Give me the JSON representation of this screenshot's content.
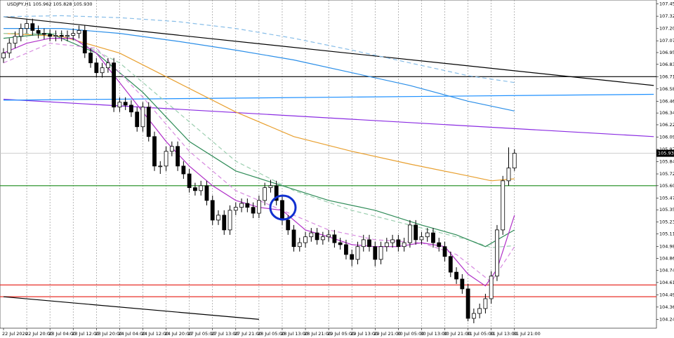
{
  "chart_data": {
    "type": "candlestick",
    "title": "USDJPY,H1  105.962 105.828 105.930",
    "categories": [
      "22 Jul 2020",
      null,
      null,
      null,
      "22 Jul 20:00",
      null,
      null,
      null,
      "23 Jul 04:00",
      null,
      null,
      null,
      "23 Jul 12:00",
      null,
      null,
      null,
      "23 Jul 20:00",
      null,
      null,
      null,
      "24 Jul 04:00",
      null,
      null,
      null,
      "24 Jul 12:00",
      null,
      null,
      null,
      "24 Jul 20:00",
      null,
      null,
      null,
      "27 Jul 05:00",
      null,
      null,
      null,
      "27 Jul 13:00",
      null,
      null,
      null,
      "27 Jul 21:00",
      null,
      null,
      null,
      "28 Jul 05:00",
      null,
      null,
      null,
      "28 Jul 13:00",
      null,
      null,
      null,
      "28 Jul 21:00",
      null,
      null,
      null,
      "29 Jul 05:00",
      null,
      null,
      null,
      "29 Jul 13:00",
      null,
      null,
      null,
      "29 Jul 21:00",
      null,
      null,
      null,
      "30 Jul 05:00",
      null,
      null,
      null,
      "30 Jul 13:00",
      null,
      null,
      null,
      "30 Jul 21:00",
      null,
      null,
      null,
      "31 Jul 05:00",
      null,
      null,
      null,
      "31 Jul 13:00",
      null,
      null,
      null,
      "31 Jul 21:00"
    ],
    "open": [
      106.9,
      106.95,
      107.05,
      107.12,
      107.2,
      107.25,
      107.18,
      107.15,
      107.14,
      107.12,
      107.13,
      107.12,
      107.13,
      107.15,
      107.18,
      106.95,
      106.85,
      106.75,
      106.8,
      106.85,
      106.4,
      106.45,
      106.42,
      106.35,
      106.2,
      106.4,
      106.1,
      105.8,
      105.8,
      105.95,
      106.0,
      105.8,
      105.72,
      105.58,
      105.55,
      105.6,
      105.45,
      105.25,
      105.3,
      105.15,
      105.35,
      105.38,
      105.42,
      105.38,
      105.32,
      105.45,
      105.58,
      105.6,
      105.45,
      105.25,
      105.15,
      104.98,
      105.02,
      105.08,
      105.12,
      105.05,
      105.08,
      105.1,
      105.02,
      105.0,
      104.9,
      104.85,
      104.98,
      105.05,
      104.98,
      104.85,
      104.98,
      105.02,
      105.05,
      104.98,
      105.02,
      105.2,
      105.05,
      105.08,
      105.12,
      105.02,
      104.98,
      104.88,
      104.72,
      104.65,
      104.55,
      104.25,
      104.3,
      104.35,
      104.45,
      104.68,
      105.15,
      105.65,
      105.78
    ],
    "high": [
      107.0,
      107.1,
      107.17,
      107.25,
      107.3,
      107.3,
      107.23,
      107.2,
      107.19,
      107.18,
      107.18,
      107.18,
      107.2,
      107.23,
      107.23,
      107.0,
      106.9,
      106.85,
      106.9,
      106.9,
      106.5,
      106.5,
      106.47,
      106.4,
      106.45,
      106.45,
      106.15,
      105.85,
      106.0,
      106.05,
      106.05,
      105.85,
      105.77,
      105.63,
      105.65,
      105.65,
      105.5,
      105.35,
      105.35,
      105.4,
      105.43,
      105.47,
      105.47,
      105.43,
      105.5,
      105.63,
      105.66,
      105.65,
      105.5,
      105.3,
      105.2,
      105.07,
      105.13,
      105.17,
      105.17,
      105.13,
      105.15,
      105.15,
      105.07,
      105.05,
      104.95,
      105.03,
      105.1,
      105.1,
      105.03,
      105.03,
      105.07,
      105.1,
      105.1,
      105.07,
      105.25,
      105.25,
      105.13,
      105.17,
      105.17,
      105.07,
      105.03,
      104.93,
      104.77,
      104.7,
      104.6,
      104.35,
      104.4,
      104.5,
      104.73,
      105.2,
      105.7,
      105.99,
      105.97
    ],
    "low": [
      106.85,
      106.9,
      107.0,
      107.07,
      107.15,
      107.13,
      107.1,
      107.09,
      107.07,
      107.07,
      107.07,
      107.07,
      107.08,
      107.1,
      106.9,
      106.8,
      106.7,
      106.7,
      106.75,
      106.35,
      106.35,
      106.37,
      106.3,
      106.15,
      106.15,
      106.05,
      105.75,
      105.72,
      105.75,
      105.9,
      105.75,
      105.67,
      105.53,
      105.5,
      105.5,
      105.4,
      105.2,
      105.2,
      105.1,
      105.1,
      105.3,
      105.33,
      105.33,
      105.27,
      105.27,
      105.4,
      105.53,
      105.4,
      105.2,
      105.1,
      104.93,
      104.93,
      104.97,
      105.03,
      105.0,
      105.0,
      105.03,
      104.97,
      104.95,
      104.85,
      104.78,
      104.8,
      104.93,
      104.93,
      104.78,
      104.8,
      104.93,
      104.97,
      104.93,
      104.93,
      104.97,
      105.0,
      105.0,
      105.03,
      104.97,
      104.93,
      104.83,
      104.67,
      104.6,
      104.5,
      104.22,
      104.2,
      104.25,
      104.3,
      104.4,
      104.63,
      105.1,
      105.6,
      105.75
    ],
    "close": [
      106.95,
      107.05,
      107.12,
      107.2,
      107.25,
      107.18,
      107.15,
      107.14,
      107.12,
      107.13,
      107.12,
      107.13,
      107.15,
      107.18,
      106.95,
      106.85,
      106.75,
      106.8,
      106.85,
      106.4,
      106.45,
      106.42,
      106.35,
      106.2,
      106.4,
      106.1,
      105.8,
      105.8,
      105.95,
      106.0,
      105.8,
      105.72,
      105.58,
      105.55,
      105.6,
      105.45,
      105.25,
      105.3,
      105.15,
      105.35,
      105.38,
      105.42,
      105.38,
      105.32,
      105.45,
      105.58,
      105.6,
      105.45,
      105.25,
      105.15,
      104.98,
      105.02,
      105.08,
      105.12,
      105.05,
      105.08,
      105.1,
      105.02,
      105.0,
      104.9,
      104.85,
      104.98,
      105.05,
      104.98,
      104.85,
      104.98,
      105.02,
      105.05,
      104.98,
      105.02,
      105.2,
      105.05,
      105.08,
      105.12,
      105.02,
      104.98,
      104.88,
      104.72,
      104.65,
      104.55,
      104.25,
      104.3,
      104.35,
      104.45,
      104.68,
      105.15,
      105.65,
      105.78,
      105.93
    ],
    "last_price": {
      "value": 105.93,
      "label": "105.930"
    },
    "ylim": [
      104.15,
      107.49
    ],
    "yticks": [
      {
        "value": 107.45,
        "label": "107.450"
      },
      {
        "value": 107.325,
        "label": "107.325"
      },
      {
        "value": 107.2,
        "label": "107.200"
      },
      {
        "value": 107.075,
        "label": "107.075"
      },
      {
        "value": 106.955,
        "label": "106.955"
      },
      {
        "value": 106.835,
        "label": "106.835"
      },
      {
        "value": 106.71,
        "label": "106.710"
      },
      {
        "value": 106.585,
        "label": "106.585"
      },
      {
        "value": 106.46,
        "label": "106.460"
      },
      {
        "value": 106.34,
        "label": "106.340"
      },
      {
        "value": 106.22,
        "label": "106.220"
      },
      {
        "value": 106.095,
        "label": "106.095"
      },
      {
        "value": 105.97,
        "label": "105.970"
      },
      {
        "value": 105.845,
        "label": "105.845"
      },
      {
        "value": 105.72,
        "label": "105.720"
      },
      {
        "value": 105.6,
        "label": "105.600"
      },
      {
        "value": 105.475,
        "label": "105.475"
      },
      {
        "value": 105.355,
        "label": "105.355"
      },
      {
        "value": 105.23,
        "label": "105.230"
      },
      {
        "value": 105.11,
        "label": "105.110"
      },
      {
        "value": 104.98,
        "label": "104.980"
      },
      {
        "value": 104.86,
        "label": "104.860"
      },
      {
        "value": 104.74,
        "label": "104.740"
      },
      {
        "value": 104.615,
        "label": "104.615"
      },
      {
        "value": 104.49,
        "label": "104.490"
      },
      {
        "value": 104.365,
        "label": "104.365"
      },
      {
        "value": 104.24,
        "label": "104.240"
      }
    ],
    "levels": [
      {
        "value": 106.71,
        "color": "#000000"
      },
      {
        "value": 105.6,
        "color": "#1a8a1a"
      },
      {
        "value": 104.59,
        "color": "#e8302a"
      },
      {
        "value": 104.47,
        "color": "#e8302a"
      }
    ],
    "lines": [
      {
        "color": "#000000",
        "dash": false,
        "x": [
          0,
          112
        ],
        "values": [
          107.32,
          106.62
        ]
      },
      {
        "color": "#000000",
        "dash": false,
        "x": [
          0,
          44
        ],
        "values": [
          104.47,
          104.24
        ]
      },
      {
        "color": "#8a2be2",
        "dash": false,
        "x": [
          0,
          112
        ],
        "values": [
          106.48,
          106.1
        ]
      },
      {
        "color": "#1e90ff",
        "dash": false,
        "x": [
          0,
          112
        ],
        "values": [
          106.47,
          106.53
        ]
      },
      {
        "color": "#87bde8",
        "dash": true,
        "x": [
          0,
          10,
          20,
          30,
          40,
          50,
          60,
          70,
          80,
          88
        ],
        "values": [
          107.32,
          107.33,
          107.31,
          107.27,
          107.2,
          107.1,
          106.98,
          106.85,
          106.72,
          106.65
        ]
      },
      {
        "color": "#2a8ee8",
        "dash": false,
        "x": [
          0,
          10,
          20,
          30,
          40,
          50,
          60,
          70,
          80,
          88
        ],
        "values": [
          107.2,
          107.2,
          107.15,
          107.07,
          106.98,
          106.88,
          106.75,
          106.62,
          106.46,
          106.36
        ]
      },
      {
        "color": "#e8a030",
        "dash": false,
        "x": [
          0,
          10,
          20,
          30,
          40,
          50,
          60,
          70,
          80,
          84,
          88
        ],
        "values": [
          107.15,
          107.12,
          106.95,
          106.65,
          106.35,
          106.1,
          105.95,
          105.82,
          105.7,
          105.65,
          105.67
        ]
      },
      {
        "color": "#9ccfb0",
        "dash": true,
        "x": [
          0,
          10,
          20,
          30,
          40,
          50,
          60,
          70,
          80,
          84,
          88
        ],
        "values": [
          107.15,
          107.15,
          106.85,
          106.35,
          105.85,
          105.55,
          105.35,
          105.2,
          105.05,
          104.97,
          104.99
        ]
      },
      {
        "color": "#2e8b57",
        "dash": false,
        "x": [
          0,
          8,
          16,
          24,
          32,
          40,
          48,
          56,
          64,
          72,
          78,
          83,
          88
        ],
        "values": [
          107.1,
          107.15,
          106.95,
          106.55,
          106.05,
          105.75,
          105.6,
          105.45,
          105.35,
          105.2,
          105.1,
          104.98,
          105.15
        ]
      },
      {
        "color": "#d78ae0",
        "dash": true,
        "x": [
          0,
          8,
          16,
          24,
          32,
          40,
          48,
          56,
          64,
          72,
          78,
          84,
          88
        ],
        "values": [
          106.85,
          107.05,
          107.0,
          106.5,
          105.95,
          105.55,
          105.35,
          105.15,
          105.05,
          105.02,
          104.9,
          104.62,
          104.98
        ]
      },
      {
        "color": "#b030c8",
        "dash": false,
        "x": [
          0,
          4,
          8,
          12,
          16,
          20,
          24,
          28,
          32,
          36,
          40,
          44,
          48,
          52,
          56,
          60,
          64,
          68,
          72,
          76,
          80,
          83,
          85,
          88
        ],
        "values": [
          106.95,
          107.05,
          107.1,
          107.1,
          106.95,
          106.65,
          106.35,
          106.05,
          105.8,
          105.6,
          105.45,
          105.38,
          105.35,
          105.15,
          105.08,
          105.0,
          104.98,
          104.98,
          105.02,
          104.98,
          104.7,
          104.58,
          104.75,
          105.3
        ]
      }
    ]
  }
}
